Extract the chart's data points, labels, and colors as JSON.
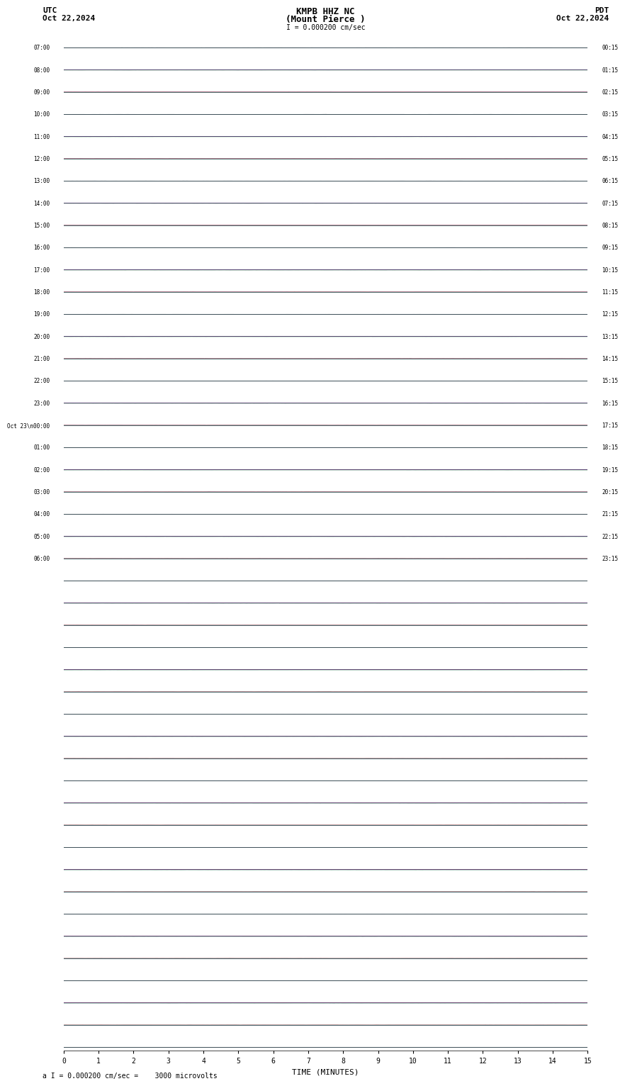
{
  "title_center": "KMPB HHZ NC",
  "title_center2": "(Mount Pierce )",
  "title_left": "UTC",
  "title_left2": "Oct 22,2024",
  "title_right": "PDT",
  "title_right2": "Oct 22,2024",
  "scale_label": "I = 0.000200 cm/sec",
  "bottom_label": "a I = 0.000200 cm/sec =    3000 microvolts",
  "xlabel": "TIME (MINUTES)",
  "x_tick_labels": [
    "0",
    "1",
    "2",
    "3",
    "4",
    "5",
    "6",
    "7",
    "8",
    "9",
    "10",
    "11",
    "12",
    "13",
    "14",
    "15"
  ],
  "colors": [
    "black",
    "red",
    "blue",
    "green"
  ],
  "background_color": "white",
  "num_rows": 46,
  "traces_per_row": 4,
  "left_times": [
    "07:00",
    "08:00",
    "09:00",
    "10:00",
    "11:00",
    "12:00",
    "13:00",
    "14:00",
    "15:00",
    "16:00",
    "17:00",
    "18:00",
    "19:00",
    "20:00",
    "21:00",
    "22:00",
    "23:00",
    "Oct 23\\n00:00",
    "01:00",
    "02:00",
    "03:00",
    "04:00",
    "05:00",
    "06:00"
  ],
  "right_times": [
    "00:15",
    "01:15",
    "02:15",
    "03:15",
    "04:15",
    "05:15",
    "06:15",
    "07:15",
    "08:15",
    "09:15",
    "10:15",
    "11:15",
    "12:15",
    "13:15",
    "14:15",
    "15:15",
    "16:15",
    "17:15",
    "18:15",
    "19:15",
    "20:15",
    "21:15",
    "22:15",
    "23:15"
  ],
  "seed": 42,
  "fig_width": 8.5,
  "fig_height": 15.84
}
